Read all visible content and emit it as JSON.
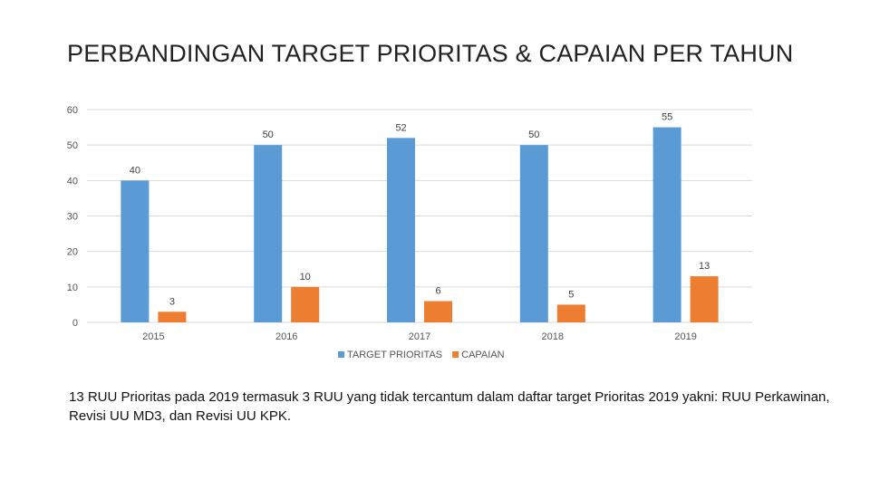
{
  "slide": {
    "title": "PERBANDINGAN TARGET PRIORITAS & CAPAIAN PER TAHUN",
    "caption": "13 RUU Prioritas pada 2019 termasuk 3 RUU yang tidak tercantum dalam daftar target Prioritas 2019 yakni: RUU Perkawinan, Revisi UU MD3, dan Revisi UU KPK."
  },
  "chart_data": {
    "type": "bar",
    "title": "PERBANDINGAN TARGET PRIORITAS & CAPAIAN PER TAHUN",
    "xlabel": "",
    "ylabel": "",
    "categories": [
      "2015",
      "2016",
      "2017",
      "2018",
      "2019"
    ],
    "series": [
      {
        "name": "TARGET PRIORITAS",
        "values": [
          40,
          50,
          52,
          50,
          55
        ],
        "color": "#5B9BD5"
      },
      {
        "name": "CAPAIAN",
        "values": [
          3,
          10,
          6,
          5,
          13
        ],
        "color": "#ED7D31"
      }
    ],
    "ylim": [
      0,
      60
    ],
    "yticks": [
      0,
      10,
      20,
      30,
      40,
      50,
      60
    ],
    "grid": true,
    "legend_position": "bottom-center",
    "gridline_color": "#D9D9D9",
    "axis_color": "#D9D9D9"
  }
}
